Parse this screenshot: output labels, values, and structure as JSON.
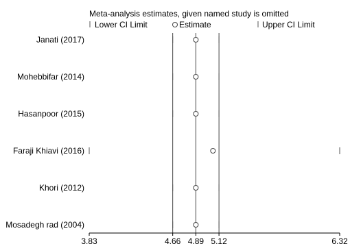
{
  "chart_data": {
    "type": "scatter",
    "title": "Meta-analysis estimates, given named study is omitted",
    "legend": {
      "placement": "top",
      "items": [
        {
          "symbol": "tick",
          "label": "Lower CI Limit"
        },
        {
          "symbol": "circle",
          "label": "Estimate"
        },
        {
          "symbol": "tick",
          "label": "Upper CI Limit"
        }
      ]
    },
    "x_ticks": [
      3.83,
      4.66,
      4.89,
      5.12,
      6.32
    ],
    "x_tick_labels": [
      "3.83",
      "4.66",
      "4.89",
      "5.12",
      "6.32"
    ],
    "xlim": [
      3.83,
      6.32
    ],
    "reference_lines": [
      4.66,
      4.89,
      5.12
    ],
    "studies": [
      {
        "name": "Janati (2017)",
        "lower": 4.66,
        "estimate": 4.89,
        "upper": 5.12
      },
      {
        "name": "Mohebbifar (2014)",
        "lower": 4.66,
        "estimate": 4.89,
        "upper": 5.12
      },
      {
        "name": "Hasanpoor (2015)",
        "lower": 4.66,
        "estimate": 4.89,
        "upper": 5.12
      },
      {
        "name": "Faraji Khiavi (2016)",
        "lower": 3.83,
        "estimate": 5.06,
        "upper": 6.32
      },
      {
        "name": "Khori (2012)",
        "lower": 4.66,
        "estimate": 4.89,
        "upper": 5.12
      },
      {
        "name": "Mosadegh rad (2004)",
        "lower": 4.66,
        "estimate": 4.89,
        "upper": 5.12
      }
    ]
  }
}
